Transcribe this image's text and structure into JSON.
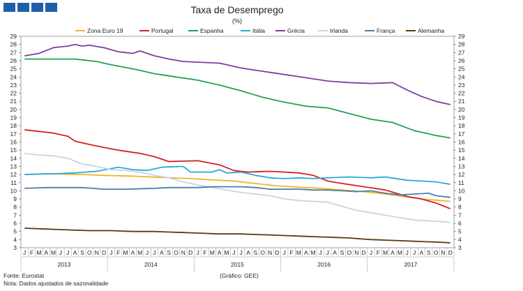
{
  "header": {
    "logo_icon": "institution-logo-blocks"
  },
  "footer": {
    "source": "Fonte: Eurostat",
    "note": "Nota: Dados ajustados de sazonalidade",
    "credit": "(Gráfico: GEE)"
  },
  "chart_data": {
    "type": "line",
    "title": "Taxa de Desemprego",
    "subtitle": "(%)",
    "ylim": [
      3,
      29
    ],
    "yticks": [
      3,
      4,
      5,
      6,
      7,
      8,
      9,
      10,
      11,
      12,
      13,
      14,
      15,
      16,
      17,
      18,
      19,
      20,
      21,
      22,
      23,
      24,
      25,
      26,
      27,
      28,
      29
    ],
    "month_labels": [
      "J",
      "F",
      "M",
      "A",
      "M",
      "J",
      "J",
      "A",
      "S",
      "O",
      "N",
      "D"
    ],
    "years": [
      "2013",
      "2014",
      "2015",
      "2016",
      "2017"
    ],
    "n_points": 60,
    "series": [
      {
        "name": "Zona Euro 19",
        "color": "#f0b429",
        "anchors": [
          [
            0,
            12
          ],
          [
            3,
            12.1
          ],
          [
            8,
            12
          ],
          [
            11,
            11.9
          ],
          [
            15,
            11.8
          ],
          [
            23,
            11.5
          ],
          [
            29,
            11.2
          ],
          [
            35,
            10.6
          ],
          [
            41,
            10.3
          ],
          [
            47,
            9.9
          ],
          [
            51,
            9.5
          ],
          [
            55,
            9.0
          ],
          [
            59,
            8.7
          ]
        ]
      },
      {
        "name": "Portugal",
        "color": "#d42020",
        "anchors": [
          [
            0,
            17.5
          ],
          [
            4,
            17.1
          ],
          [
            6,
            16.7
          ],
          [
            7,
            16.1
          ],
          [
            10,
            15.5
          ],
          [
            13,
            15
          ],
          [
            16,
            14.6
          ],
          [
            18,
            14.2
          ],
          [
            20,
            13.6
          ],
          [
            24,
            13.7
          ],
          [
            27,
            13.2
          ],
          [
            29,
            12.5
          ],
          [
            31,
            12.3
          ],
          [
            34,
            12.4
          ],
          [
            38,
            12.2
          ],
          [
            40,
            11.9
          ],
          [
            42,
            11.2
          ],
          [
            44,
            10.9
          ],
          [
            47,
            10.5
          ],
          [
            50,
            10.1
          ],
          [
            53,
            9.3
          ],
          [
            55,
            9.0
          ],
          [
            57,
            8.5
          ],
          [
            59,
            7.8
          ]
        ]
      },
      {
        "name": "Espanha",
        "color": "#22a055",
        "anchors": [
          [
            0,
            26.2
          ],
          [
            3,
            26.2
          ],
          [
            7,
            26.2
          ],
          [
            10,
            25.9
          ],
          [
            12,
            25.5
          ],
          [
            15,
            25.0
          ],
          [
            18,
            24.4
          ],
          [
            21,
            24.0
          ],
          [
            24,
            23.6
          ],
          [
            27,
            23.0
          ],
          [
            30,
            22.3
          ],
          [
            33,
            21.5
          ],
          [
            36,
            20.9
          ],
          [
            39,
            20.4
          ],
          [
            42,
            20.2
          ],
          [
            45,
            19.5
          ],
          [
            48,
            18.8
          ],
          [
            51,
            18.4
          ],
          [
            54,
            17.4
          ],
          [
            57,
            16.8
          ],
          [
            59,
            16.5
          ]
        ]
      },
      {
        "name": "Itália",
        "color": "#2aa8d8",
        "anchors": [
          [
            0,
            12.0
          ],
          [
            4,
            12.1
          ],
          [
            7,
            12.2
          ],
          [
            10,
            12.4
          ],
          [
            13,
            12.9
          ],
          [
            15,
            12.6
          ],
          [
            17,
            12.5
          ],
          [
            19,
            12.9
          ],
          [
            22,
            13.0
          ],
          [
            23,
            12.3
          ],
          [
            26,
            12.3
          ],
          [
            27,
            12.6
          ],
          [
            28,
            12.2
          ],
          [
            30,
            12.3
          ],
          [
            32,
            11.9
          ],
          [
            34,
            11.6
          ],
          [
            36,
            11.5
          ],
          [
            38,
            11.6
          ],
          [
            40,
            11.5
          ],
          [
            42,
            11.6
          ],
          [
            45,
            11.7
          ],
          [
            48,
            11.6
          ],
          [
            50,
            11.7
          ],
          [
            53,
            11.3
          ],
          [
            55,
            11.2
          ],
          [
            57,
            11.1
          ],
          [
            59,
            10.8
          ]
        ]
      },
      {
        "name": "Grécia",
        "color": "#7b3fa0",
        "anchors": [
          [
            0,
            26.6
          ],
          [
            2,
            26.9
          ],
          [
            4,
            27.6
          ],
          [
            6,
            27.8
          ],
          [
            7,
            28.0
          ],
          [
            8,
            27.8
          ],
          [
            9,
            27.9
          ],
          [
            11,
            27.6
          ],
          [
            13,
            27.1
          ],
          [
            15,
            26.9
          ],
          [
            16,
            27.2
          ],
          [
            18,
            26.6
          ],
          [
            20,
            26.2
          ],
          [
            22,
            25.9
          ],
          [
            27,
            25.7
          ],
          [
            30,
            25.1
          ],
          [
            33,
            24.7
          ],
          [
            36,
            24.3
          ],
          [
            39,
            23.9
          ],
          [
            42,
            23.5
          ],
          [
            45,
            23.3
          ],
          [
            48,
            23.2
          ],
          [
            51,
            23.3
          ],
          [
            53,
            22.4
          ],
          [
            55,
            21.6
          ],
          [
            57,
            21.0
          ],
          [
            59,
            20.6
          ]
        ]
      },
      {
        "name": "Irlanda",
        "color": "#c8d4e6",
        "anchors": [
          [
            0,
            14.6
          ],
          [
            2,
            14.4
          ],
          [
            4,
            14.3
          ],
          [
            6,
            14.0
          ],
          [
            8,
            13.3
          ],
          [
            10,
            13.0
          ],
          [
            12,
            12.6
          ],
          [
            14,
            12.5
          ],
          [
            16,
            12.3
          ],
          [
            18,
            11.9
          ],
          [
            20,
            11.6
          ],
          [
            22,
            11.1
          ],
          [
            24,
            10.7
          ],
          [
            26,
            10.4
          ],
          [
            28,
            10.1
          ],
          [
            30,
            9.8
          ],
          [
            32,
            9.6
          ],
          [
            34,
            9.4
          ],
          [
            36,
            9.0
          ],
          [
            38,
            8.8
          ],
          [
            40,
            8.7
          ],
          [
            42,
            8.6
          ],
          [
            44,
            8.1
          ],
          [
            46,
            7.6
          ],
          [
            48,
            7.3
          ],
          [
            50,
            7.0
          ],
          [
            52,
            6.7
          ],
          [
            54,
            6.4
          ],
          [
            56,
            6.3
          ],
          [
            58,
            6.2
          ],
          [
            59,
            6.1
          ]
        ]
      },
      {
        "name": "França",
        "color": "#4a7ea8",
        "anchors": [
          [
            0,
            10.3
          ],
          [
            3,
            10.4
          ],
          [
            8,
            10.4
          ],
          [
            11,
            10.2
          ],
          [
            14,
            10.2
          ],
          [
            18,
            10.3
          ],
          [
            20,
            10.4
          ],
          [
            24,
            10.4
          ],
          [
            26,
            10.5
          ],
          [
            30,
            10.5
          ],
          [
            32,
            10.4
          ],
          [
            34,
            10.2
          ],
          [
            36,
            10.2
          ],
          [
            38,
            10.2
          ],
          [
            40,
            10.1
          ],
          [
            42,
            10.1
          ],
          [
            44,
            10.0
          ],
          [
            46,
            9.9
          ],
          [
            48,
            10.0
          ],
          [
            50,
            9.7
          ],
          [
            52,
            9.5
          ],
          [
            54,
            9.6
          ],
          [
            56,
            9.7
          ],
          [
            57,
            9.4
          ],
          [
            59,
            9.2
          ]
        ]
      },
      {
        "name": "Alemanha",
        "color": "#5a3a10",
        "anchors": [
          [
            0,
            5.4
          ],
          [
            3,
            5.3
          ],
          [
            6,
            5.2
          ],
          [
            9,
            5.1
          ],
          [
            12,
            5.1
          ],
          [
            15,
            5.0
          ],
          [
            18,
            5.0
          ],
          [
            21,
            4.9
          ],
          [
            24,
            4.8
          ],
          [
            27,
            4.7
          ],
          [
            30,
            4.7
          ],
          [
            33,
            4.6
          ],
          [
            36,
            4.5
          ],
          [
            39,
            4.4
          ],
          [
            42,
            4.3
          ],
          [
            45,
            4.2
          ],
          [
            48,
            4.0
          ],
          [
            51,
            3.9
          ],
          [
            54,
            3.8
          ],
          [
            57,
            3.7
          ],
          [
            59,
            3.6
          ]
        ]
      }
    ]
  }
}
